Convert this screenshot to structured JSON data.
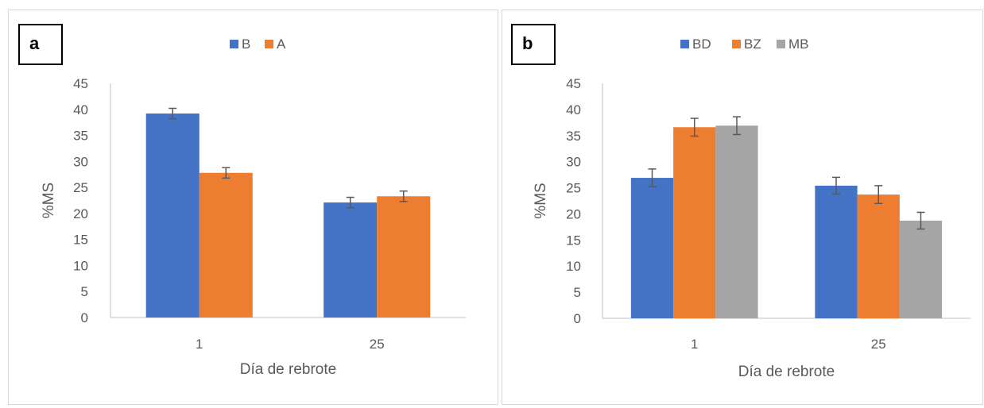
{
  "chart_data": [
    {
      "type": "bar",
      "panel_label": "a",
      "categories": [
        "1",
        "25"
      ],
      "series": [
        {
          "name": "B",
          "color": "#4472C4",
          "values": [
            39.2,
            22.1
          ],
          "errors": [
            1.0,
            1.0
          ]
        },
        {
          "name": "A",
          "color": "#ED7D31",
          "values": [
            27.8,
            23.3
          ],
          "errors": [
            1.0,
            1.0
          ]
        }
      ],
      "xlabel": "Día de rebrote",
      "ylabel": "%MS",
      "ylim": [
        0,
        45
      ],
      "yticks": [
        "0",
        "5",
        "10",
        "15",
        "20",
        "25",
        "30",
        "35",
        "40",
        "45"
      ],
      "legend": "top",
      "grid": false
    },
    {
      "type": "bar",
      "panel_label": "b",
      "categories": [
        "1",
        "25"
      ],
      "series": [
        {
          "name": "BD",
          "color": "#4472C4",
          "values": [
            26.9,
            25.4
          ],
          "errors": [
            1.7,
            1.6
          ]
        },
        {
          "name": "BZ",
          "color": "#ED7D31",
          "values": [
            36.6,
            23.7
          ],
          "errors": [
            1.7,
            1.7
          ]
        },
        {
          "name": "MB",
          "color": "#A5A5A5",
          "values": [
            36.9,
            18.7
          ],
          "errors": [
            1.7,
            1.6
          ]
        }
      ],
      "xlabel": "Día de rebrote",
      "ylabel": "%MS",
      "ylim": [
        0,
        45
      ],
      "yticks": [
        "0",
        "5",
        "10",
        "15",
        "20",
        "25",
        "30",
        "35",
        "40",
        "45"
      ],
      "legend": "top",
      "grid": false
    }
  ]
}
